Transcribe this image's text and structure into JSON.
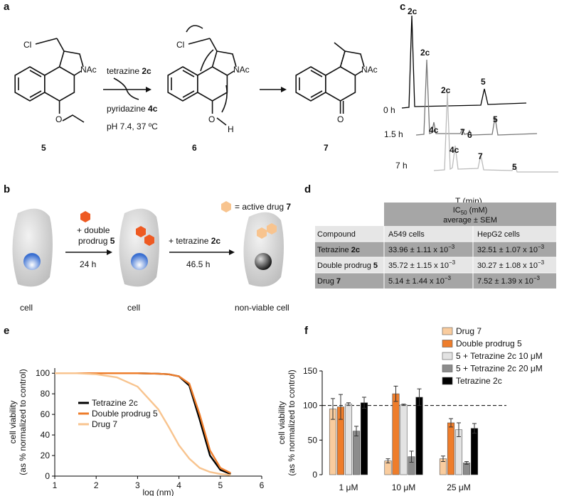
{
  "panels": {
    "a": {
      "label": "a",
      "reagent": "tetrazine ",
      "reagent_id": "2c",
      "byproduct": "pyridazine ",
      "byproduct_id": "4c",
      "conditions": "pH 7.4, 37 ºC",
      "molecules": [
        {
          "number": "5",
          "cl": "Cl",
          "nac": "NAc",
          "o": "O"
        },
        {
          "number": "6",
          "cl": "Cl",
          "nac": "NAc",
          "o": "O",
          "h": "H"
        },
        {
          "number": "7",
          "nac": "NAc",
          "o": "O"
        }
      ]
    },
    "b": {
      "label": "b",
      "legend": "= active drug ",
      "legend_id": "7",
      "step1": [
        "+ double",
        "prodrug "
      ],
      "step1_id": "5",
      "time1": "24 h",
      "step2": "+ tetrazine ",
      "step2_id": "2c",
      "time2": "46.5 h",
      "cells": [
        "cell",
        "cell",
        "non-viable cell"
      ]
    },
    "c": {
      "label": "c",
      "xlabel": "T (min)",
      "traces": [
        {
          "time": "0 h",
          "peaks": [
            "2c",
            "5"
          ]
        },
        {
          "time": "1.5 h",
          "peaks": [
            "2c",
            "4c",
            "7",
            "6",
            "5"
          ]
        },
        {
          "time": "7 h",
          "peaks": [
            "2c",
            "4c",
            "7",
            "5"
          ]
        }
      ]
    },
    "d": {
      "label": "d",
      "header": {
        "ic": "IC",
        "sub": "50",
        "unit": " (mM)",
        "line2": "average ± SEM"
      },
      "columns": [
        "Compound",
        "A549 cells",
        "HepG2 cells"
      ],
      "rows": [
        {
          "name": "Tetrazine ",
          "id": "2c",
          "cells": [
            {
              "text": "33.96 ± 1.11 x 10",
              "sup": "−3"
            },
            {
              "text": "32.51 ± 1.07 x 10",
              "sup": "−3"
            }
          ]
        },
        {
          "name": "Double prodrug ",
          "id": "5",
          "cells": [
            {
              "text": "35.72 ± 1.15 x 10",
              "sup": "−3"
            },
            {
              "text": "30.27 ± 1.08 x 10",
              "sup": "−3"
            }
          ]
        },
        {
          "name": "Drug ",
          "id": "7",
          "cells": [
            {
              "text": "5.14 ± 1.44 x 10",
              "sup": "−3"
            },
            {
              "text": "7.52 ± 1.39 x 10",
              "sup": "−3"
            }
          ]
        }
      ]
    }
  },
  "chart_data": [
    {
      "type": "line",
      "panel_label": "e",
      "xlabel": "log (nm)",
      "ylabel": [
        "cell viability",
        "(as % normalized to control)"
      ],
      "x": [
        1,
        1.5,
        2,
        2.5,
        3,
        3.5,
        3.75,
        4,
        4.25,
        4.5,
        4.75,
        5,
        5.25
      ],
      "series": [
        {
          "name": "Tetrazine 2c",
          "color": "#000000",
          "values": [
            100,
            100,
            100,
            100,
            100,
            99.5,
            99,
            97,
            88,
            55,
            20,
            6,
            2
          ]
        },
        {
          "name": "Double prodrug 5",
          "color": "#ee7d2b",
          "values": [
            100,
            100,
            100,
            100,
            100,
            99.5,
            99,
            97,
            90,
            60,
            25,
            8,
            3
          ]
        },
        {
          "name": "Drug 7",
          "color": "#f8c48f",
          "values": [
            100,
            100,
            99,
            96,
            87,
            65,
            48,
            30,
            17,
            8,
            4,
            2,
            1
          ]
        }
      ],
      "xlim": [
        1,
        6
      ],
      "xticks": [
        1,
        2,
        3,
        4,
        5,
        6
      ],
      "ylim": [
        0,
        105
      ],
      "yticks": [
        0,
        20,
        40,
        60,
        80,
        100
      ],
      "legend": "lower-left"
    },
    {
      "type": "bar",
      "panel_label": "f",
      "ylabel": [
        "cell viability",
        "(as % normalized to control)"
      ],
      "categories": [
        "1 μM",
        "10 μM",
        "25 μM"
      ],
      "series": [
        {
          "name": "Drug 7",
          "color": "#f9cc9e",
          "values": [
            95,
            20,
            23
          ],
          "errors": [
            15,
            3,
            4
          ]
        },
        {
          "name": "Double prodrug 5",
          "color": "#ee7d2b",
          "values": [
            98,
            117,
            75
          ],
          "errors": [
            18,
            11,
            6
          ]
        },
        {
          "name": "5 + Tetrazine 2c 10 μM",
          "color": "#e3e3e3",
          "values": [
            102,
            101,
            65
          ],
          "errors": [
            2,
            1,
            10
          ]
        },
        {
          "name": "5 + Tetrazine 2c 20 μM",
          "color": "#8c8c8c",
          "values": [
            63,
            26,
            17
          ],
          "errors": [
            7,
            8,
            2
          ]
        },
        {
          "name": "Tetrazine 2c",
          "color": "#000000",
          "values": [
            104,
            112,
            67
          ],
          "errors": [
            8,
            12,
            7
          ]
        }
      ],
      "ylim": [
        0,
        150
      ],
      "yticks": [
        0,
        50,
        100,
        150
      ],
      "reference_line": 100,
      "legend": "upper-right"
    }
  ]
}
